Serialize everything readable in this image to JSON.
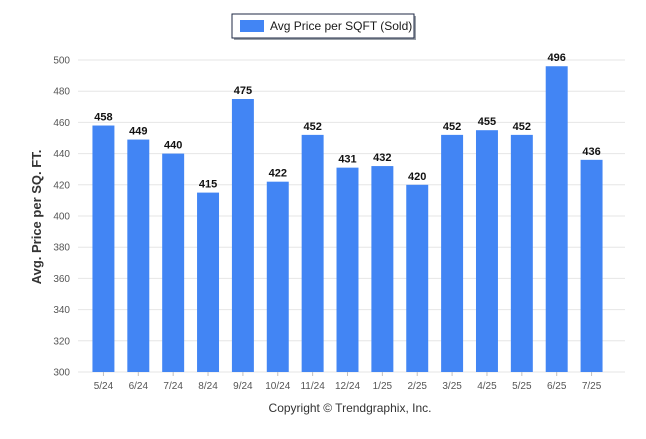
{
  "chart_data": {
    "type": "bar",
    "categories": [
      "5/24",
      "6/24",
      "7/24",
      "8/24",
      "9/24",
      "10/24",
      "11/24",
      "12/24",
      "1/25",
      "2/25",
      "3/25",
      "4/25",
      "5/25",
      "6/25",
      "7/25"
    ],
    "series": [
      {
        "name": "Avg Price per SQFT (Sold)",
        "values": [
          458,
          449,
          440,
          415,
          475,
          422,
          452,
          431,
          432,
          420,
          452,
          455,
          452,
          496,
          436
        ]
      }
    ],
    "data_labels": [
      "458",
      "449",
      "440",
      "415",
      "475",
      "422",
      "452",
      "431",
      "432",
      "420",
      "452",
      "455",
      "452",
      "496",
      "436"
    ],
    "ylabel": "Avg. Price per SQ. FT.",
    "xlabel": "",
    "ylim": [
      300,
      500
    ],
    "y_ticks": [
      "300",
      "320",
      "340",
      "360",
      "380",
      "400",
      "420",
      "440",
      "460",
      "480",
      "500"
    ],
    "grid": true,
    "legend_position": "top-center",
    "bar_color": "#4285f4"
  },
  "copyright": "Copyright © Trendgraphix, Inc."
}
